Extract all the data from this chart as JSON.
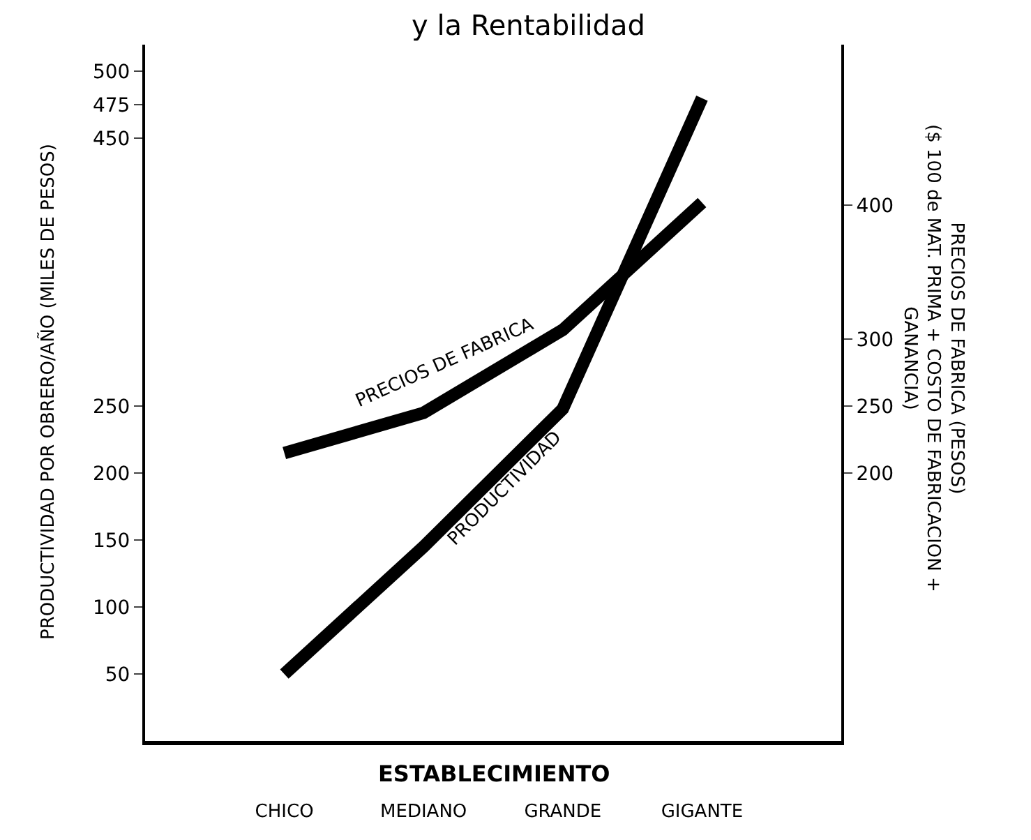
{
  "chart_data": {
    "type": "line",
    "title": "y la Rentabilidad",
    "xlabel": "ESTABLECIMIENTO",
    "ylabel": "PRODUCTIVIDAD POR OBRERO/AÑO (MILES DE PESOS)",
    "y2label": "PRECIOS DE FABRICA (PESOS)\n($ 100 de MAT. PRIMA + COSTO DE FABRICACION +\nGANANCIA)",
    "categories": [
      "CHICO",
      "MEDIANO",
      "GRANDE",
      "GIGANTE"
    ],
    "series": [
      {
        "name": "PRODUCTIVIDAD",
        "color": "#000000",
        "values": [
          50,
          145,
          248,
          480
        ]
      },
      {
        "name": "PRECIOS DE FABRICA",
        "color": "#000000",
        "values": [
          215,
          245,
          307,
          402
        ],
        "axis": "y2"
      }
    ],
    "ylim": [
      0,
      520
    ],
    "yticks": [
      50,
      100,
      150,
      200,
      250,
      450,
      475,
      500
    ],
    "y2lim": [
      0,
      520
    ],
    "y2ticks": [
      200,
      250,
      300,
      400
    ],
    "legend": false,
    "marker": "none",
    "line_style": "solid"
  }
}
